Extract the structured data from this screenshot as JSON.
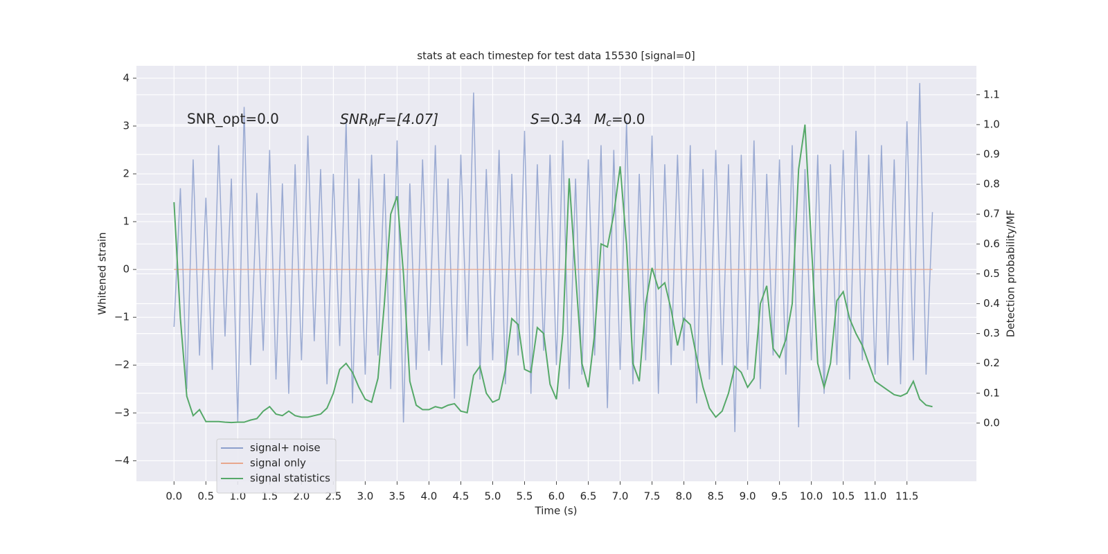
{
  "chart_data": {
    "type": "line",
    "title": "stats at each timestep for test data 15530 [signal=0]",
    "xlabel": "Time (s)",
    "ylabel": "Whitened strain",
    "y2label": "Detection probability/MF",
    "annotations": [
      {
        "text": "SNR_opt=0.0"
      },
      {
        "parts": [
          "SNR",
          "M",
          "F=[4.07]"
        ]
      },
      {
        "parts": [
          "S",
          "=0.34"
        ]
      },
      {
        "parts": [
          "M",
          "c",
          "=0.0"
        ]
      }
    ],
    "x": [
      0,
      0.1,
      0.2,
      0.3,
      0.4,
      0.5,
      0.6,
      0.7,
      0.8,
      0.9,
      1,
      1.1,
      1.2,
      1.3,
      1.4,
      1.5,
      1.6,
      1.7,
      1.8,
      1.9,
      2,
      2.1,
      2.2,
      2.3,
      2.4,
      2.5,
      2.6,
      2.7,
      2.8,
      2.9,
      3,
      3.1,
      3.2,
      3.3,
      3.4,
      3.5,
      3.6,
      3.7,
      3.8,
      3.9,
      4,
      4.1,
      4.2,
      4.3,
      4.4,
      4.5,
      4.6,
      4.7,
      4.8,
      4.9,
      5,
      5.1,
      5.2,
      5.3,
      5.4,
      5.5,
      5.6,
      5.7,
      5.8,
      5.9,
      6,
      6.1,
      6.2,
      6.3,
      6.4,
      6.5,
      6.6,
      6.7,
      6.8,
      6.9,
      7,
      7.1,
      7.2,
      7.3,
      7.4,
      7.5,
      7.6,
      7.7,
      7.8,
      7.9,
      8,
      8.1,
      8.2,
      8.3,
      8.4,
      8.5,
      8.6,
      8.7,
      8.8,
      8.9,
      9,
      9.1,
      9.2,
      9.3,
      9.4,
      9.5,
      9.6,
      9.7,
      9.8,
      9.9,
      10,
      10.1,
      10.2,
      10.3,
      10.4,
      10.5,
      10.6,
      10.7,
      10.8,
      10.9,
      11,
      11.1,
      11.2,
      11.3,
      11.4,
      11.5,
      11.6,
      11.7,
      11.8,
      11.9
    ],
    "series": [
      {
        "name": "signal+ noise",
        "color": "#8c9fcc",
        "values": [
          -1.2,
          1.7,
          -2.5,
          2.3,
          -1.8,
          1.5,
          -2.1,
          2.6,
          -1.4,
          1.9,
          -3.2,
          3.4,
          -2.0,
          1.6,
          -1.7,
          2.5,
          -2.3,
          1.8,
          -2.6,
          2.2,
          -1.9,
          2.8,
          -1.5,
          2.1,
          -2.4,
          2.0,
          -1.6,
          3.1,
          -2.8,
          1.9,
          -2.2,
          2.4,
          -1.8,
          2.0,
          -2.5,
          2.7,
          -3.2,
          1.8,
          -2.1,
          2.3,
          -1.7,
          2.6,
          -2.0,
          1.9,
          -2.7,
          2.4,
          -1.6,
          3.7,
          -2.3,
          2.1,
          -1.9,
          2.5,
          -2.4,
          2.0,
          -1.8,
          2.9,
          -2.6,
          2.2,
          -1.7,
          2.4,
          -2.0,
          2.7,
          -2.5,
          1.9,
          -2.2,
          2.3,
          -1.8,
          2.6,
          -2.9,
          2.5,
          -2.1,
          3.1,
          -2.4,
          2.0,
          -1.9,
          2.8,
          -2.6,
          2.2,
          -2.0,
          2.4,
          -1.7,
          2.6,
          -2.8,
          2.1,
          -2.3,
          2.5,
          -2.0,
          2.2,
          -3.4,
          2.4,
          -2.1,
          2.7,
          -2.5,
          2.0,
          -1.8,
          2.3,
          -2.2,
          2.6,
          -3.3,
          2.1,
          -1.9,
          2.4,
          -2.6,
          2.2,
          -2.0,
          2.5,
          -2.3,
          2.9,
          -1.9,
          2.4,
          -2.2,
          2.6,
          -2.0,
          2.3,
          -2.4,
          3.1,
          -1.9,
          3.9,
          -2.2,
          1.2
        ]
      },
      {
        "name": "signal only",
        "color": "#e8a68c",
        "values": [
          0,
          0,
          0,
          0,
          0,
          0,
          0,
          0,
          0,
          0,
          0,
          0,
          0,
          0,
          0,
          0,
          0,
          0,
          0,
          0,
          0,
          0,
          0,
          0,
          0,
          0,
          0,
          0,
          0,
          0,
          0,
          0,
          0,
          0,
          0,
          0,
          0,
          0,
          0,
          0,
          0,
          0,
          0,
          0,
          0,
          0,
          0,
          0,
          0,
          0,
          0,
          0,
          0,
          0,
          0,
          0,
          0,
          0,
          0,
          0,
          0,
          0,
          0,
          0,
          0,
          0,
          0,
          0,
          0,
          0,
          0,
          0,
          0,
          0,
          0,
          0,
          0,
          0,
          0,
          0,
          0,
          0,
          0,
          0,
          0,
          0,
          0,
          0,
          0,
          0,
          0,
          0,
          0,
          0,
          0,
          0,
          0,
          0,
          0,
          0,
          0,
          0,
          0,
          0,
          0,
          0,
          0,
          0,
          0,
          0,
          0,
          0,
          0,
          0,
          0,
          0,
          0,
          0,
          0,
          0
        ]
      },
      {
        "name": "signal statistics",
        "color": "#55a868",
        "axis": "y2",
        "values": [
          0.74,
          0.35,
          0.09,
          0.025,
          0.045,
          0.005,
          0.005,
          0.005,
          0.003,
          0.002,
          0.003,
          0.003,
          0.01,
          0.015,
          0.04,
          0.055,
          0.03,
          0.025,
          0.04,
          0.025,
          0.02,
          0.02,
          0.025,
          0.03,
          0.05,
          0.1,
          0.18,
          0.2,
          0.17,
          0.12,
          0.08,
          0.07,
          0.15,
          0.4,
          0.7,
          0.76,
          0.5,
          0.14,
          0.06,
          0.045,
          0.045,
          0.055,
          0.05,
          0.06,
          0.065,
          0.04,
          0.035,
          0.16,
          0.19,
          0.1,
          0.07,
          0.08,
          0.18,
          0.35,
          0.33,
          0.18,
          0.17,
          0.32,
          0.3,
          0.13,
          0.08,
          0.3,
          0.82,
          0.5,
          0.2,
          0.12,
          0.3,
          0.6,
          0.59,
          0.7,
          0.86,
          0.6,
          0.2,
          0.14,
          0.4,
          0.52,
          0.45,
          0.47,
          0.38,
          0.26,
          0.35,
          0.33,
          0.22,
          0.12,
          0.05,
          0.02,
          0.04,
          0.1,
          0.19,
          0.17,
          0.12,
          0.15,
          0.4,
          0.46,
          0.25,
          0.22,
          0.28,
          0.4,
          0.85,
          1.0,
          0.6,
          0.2,
          0.12,
          0.2,
          0.41,
          0.44,
          0.35,
          0.3,
          0.26,
          0.2,
          0.14,
          0.125,
          0.11,
          0.095,
          0.09,
          0.1,
          0.14,
          0.08,
          0.06,
          0.055
        ]
      }
    ],
    "xlim": [
      -0.59,
      12.59
    ],
    "ylim": [
      -4.43,
      4.26
    ],
    "y2lim": [
      -0.195,
      1.197
    ],
    "xticks": [
      {
        "value": 0,
        "label": "0.0"
      },
      {
        "value": 0.5,
        "label": "0.5"
      },
      {
        "value": 1,
        "label": "1.0"
      },
      {
        "value": 1.5,
        "label": "1.5"
      },
      {
        "value": 2,
        "label": "2.0"
      },
      {
        "value": 2.5,
        "label": "2.5"
      },
      {
        "value": 3,
        "label": "3.0"
      },
      {
        "value": 3.5,
        "label": "3.5"
      },
      {
        "value": 4,
        "label": "4.0"
      },
      {
        "value": 4.5,
        "label": "4.5"
      },
      {
        "value": 5,
        "label": "5.0"
      },
      {
        "value": 5.5,
        "label": "5.5"
      },
      {
        "value": 6,
        "label": "6.0"
      },
      {
        "value": 6.5,
        "label": "6.5"
      },
      {
        "value": 7,
        "label": "7.0"
      },
      {
        "value": 7.5,
        "label": "7.5"
      },
      {
        "value": 8,
        "label": "8.0"
      },
      {
        "value": 8.5,
        "label": "8.5"
      },
      {
        "value": 9,
        "label": "9.0"
      },
      {
        "value": 9.5,
        "label": "9.5"
      },
      {
        "value": 10,
        "label": "10.0"
      },
      {
        "value": 10.5,
        "label": "10.5"
      },
      {
        "value": 11,
        "label": "11.0"
      },
      {
        "value": 11.5,
        "label": "11.5"
      }
    ],
    "yticks": [
      {
        "value": -4,
        "label": "−4"
      },
      {
        "value": -3,
        "label": "−3"
      },
      {
        "value": -2,
        "label": "−2"
      },
      {
        "value": -1,
        "label": "−1"
      },
      0,
      1,
      2,
      3,
      4
    ],
    "y2ticks": [
      {
        "value": 0,
        "label": "0.0"
      },
      {
        "value": 0.1,
        "label": "0.1"
      },
      {
        "value": 0.2,
        "label": "0.2"
      },
      {
        "value": 0.3,
        "label": "0.3"
      },
      {
        "value": 0.4,
        "label": "0.4"
      },
      {
        "value": 0.5,
        "label": "0.5"
      },
      {
        "value": 0.6,
        "label": "0.6"
      },
      {
        "value": 0.7,
        "label": "0.7"
      },
      {
        "value": 0.8,
        "label": "0.8"
      },
      {
        "value": 0.9,
        "label": "0.9"
      },
      {
        "value": 1,
        "label": "1.0"
      },
      {
        "value": 1.1,
        "label": "1.1"
      }
    ],
    "grid": true,
    "legend": "lower left"
  }
}
